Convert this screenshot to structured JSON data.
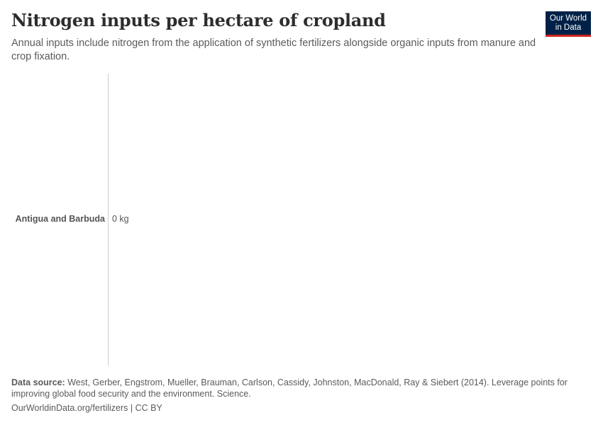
{
  "header": {
    "title": "Nitrogen inputs per hectare of cropland",
    "subtitle": "Annual inputs include nitrogen from the application of synthetic fertilizers alongside organic inputs from manure and crop fixation."
  },
  "logo": {
    "line1": "Our World",
    "line2": "in Data",
    "bg_color": "#002147",
    "accent_color": "#ce261e"
  },
  "chart_data": {
    "type": "bar",
    "orientation": "horizontal",
    "title": "Nitrogen inputs per hectare of cropland",
    "subtitle": "Annual inputs include nitrogen from the application of synthetic fertilizers alongside organic inputs from manure and crop fixation.",
    "categories": [
      "Antigua and Barbuda"
    ],
    "values": [
      0
    ],
    "value_labels": [
      "0 kg"
    ],
    "unit": "kg",
    "xlabel": "",
    "ylabel": "",
    "grid": false,
    "legend": null
  },
  "rows": [
    {
      "entity": "Antigua and Barbuda",
      "value_label": "0 kg"
    }
  ],
  "footer": {
    "source_label": "Data source:",
    "source_text": " West, Gerber, Engstrom, Mueller, Brauman, Carlson, Cassidy, Johnston, MacDonald, Ray & Siebert (2014). Leverage points for improving global food security and the environment. Science.",
    "url_text": "OurWorldinData.org/fertilizers",
    "separator": " | ",
    "license": "CC BY"
  }
}
